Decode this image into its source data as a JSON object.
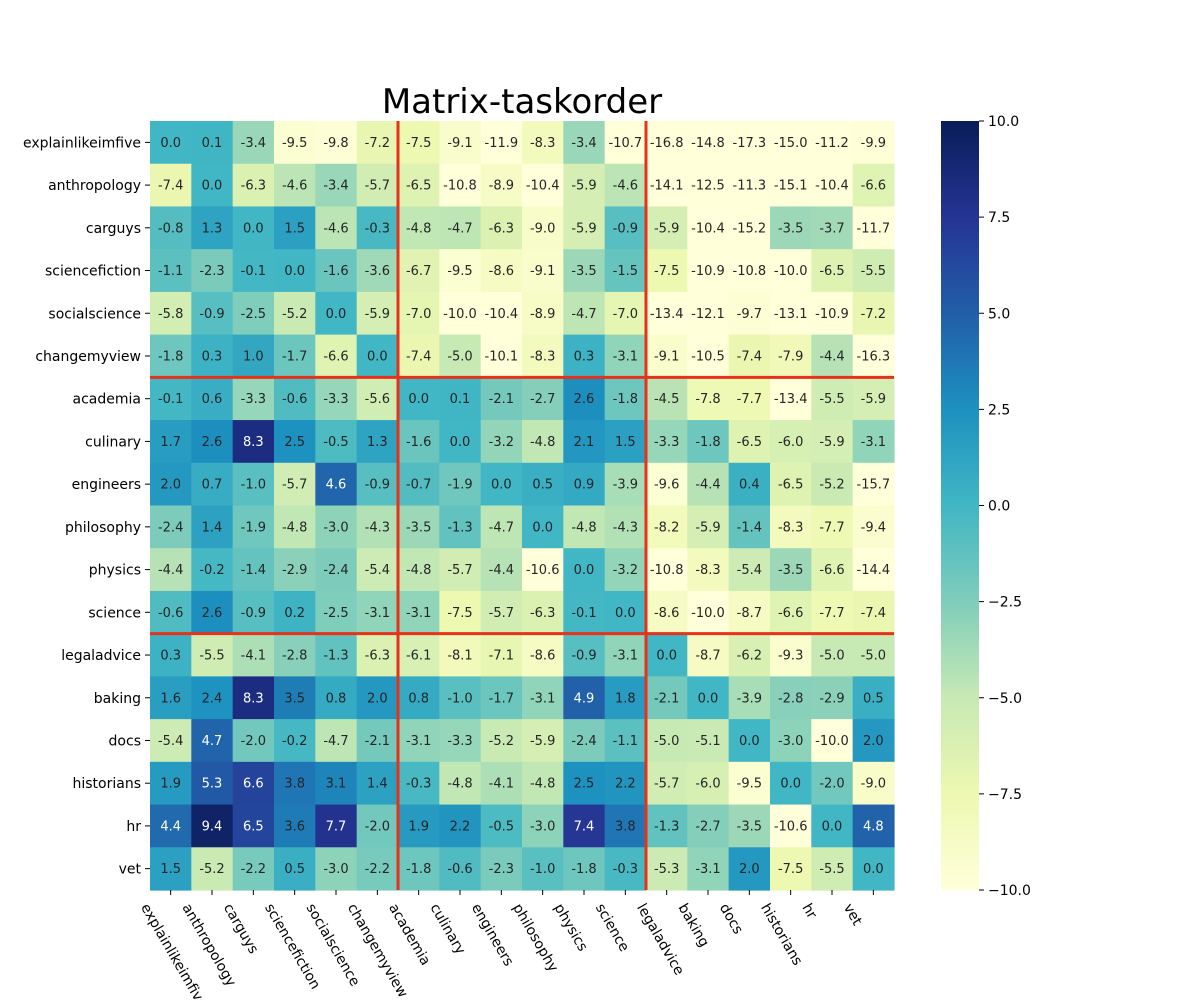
{
  "chart_data": {
    "type": "heatmap",
    "title": "Matrix-taskorder",
    "rows": [
      "explainlikeimfive",
      "anthropology",
      "carguys",
      "sciencefiction",
      "socialscience",
      "changemyview",
      "academia",
      "culinary",
      "engineers",
      "philosophy",
      "physics",
      "science",
      "legaladvice",
      "baking",
      "docs",
      "historians",
      "hr",
      "vet"
    ],
    "cols": [
      "explainlikeimfive",
      "anthropology",
      "carguys",
      "sciencefiction",
      "socialscience",
      "changemyview",
      "academia",
      "culinary",
      "engineers",
      "philosophy",
      "physics",
      "science",
      "legaladvice",
      "baking",
      "docs",
      "historians",
      "hr",
      "vet"
    ],
    "values": [
      [
        0.0,
        0.1,
        -3.4,
        -9.5,
        -9.8,
        -7.2,
        -7.5,
        -9.1,
        -11.9,
        -8.3,
        -3.4,
        -10.7,
        -16.8,
        -14.8,
        -17.3,
        -15.0,
        -11.2,
        -9.9
      ],
      [
        -7.4,
        0.0,
        -6.3,
        -4.6,
        -3.4,
        -5.7,
        -6.5,
        -10.8,
        -8.9,
        -10.4,
        -5.9,
        -4.6,
        -14.1,
        -12.5,
        -11.3,
        -15.1,
        -10.4,
        -6.6
      ],
      [
        -0.8,
        1.3,
        0.0,
        1.5,
        -4.6,
        -0.3,
        -4.8,
        -4.7,
        -6.3,
        -9.0,
        -5.9,
        -0.9,
        -5.9,
        -10.4,
        -15.2,
        -3.5,
        -3.7,
        -11.7
      ],
      [
        -1.1,
        -2.3,
        -0.1,
        0.0,
        -1.6,
        -3.6,
        -6.7,
        -9.5,
        -8.6,
        -9.1,
        -3.5,
        -1.5,
        -7.5,
        -10.9,
        -10.8,
        -10.0,
        -6.5,
        -5.5
      ],
      [
        -5.8,
        -0.9,
        -2.5,
        -5.2,
        0.0,
        -5.9,
        -7.0,
        -10.0,
        -10.4,
        -8.9,
        -4.7,
        -7.0,
        -13.4,
        -12.1,
        -9.7,
        -13.1,
        -10.9,
        -7.2
      ],
      [
        -1.8,
        0.3,
        1.0,
        -1.7,
        -6.6,
        0.0,
        -7.4,
        -5.0,
        -10.1,
        -8.3,
        0.3,
        -3.1,
        -9.1,
        -10.5,
        -7.4,
        -7.9,
        -4.4,
        -16.3
      ],
      [
        -0.1,
        0.6,
        -3.3,
        -0.6,
        -3.3,
        -5.6,
        0.0,
        0.1,
        -2.1,
        -2.7,
        2.6,
        -1.8,
        -4.5,
        -7.8,
        -7.7,
        -13.4,
        -5.5,
        -5.9
      ],
      [
        1.7,
        2.6,
        8.3,
        2.5,
        -0.5,
        1.3,
        -1.6,
        0.0,
        -3.2,
        -4.8,
        2.1,
        1.5,
        -3.3,
        -1.8,
        -6.5,
        -6.0,
        -5.9,
        -3.1
      ],
      [
        2.0,
        0.7,
        -1.0,
        -5.7,
        4.6,
        -0.9,
        -0.7,
        -1.9,
        0.0,
        0.5,
        0.9,
        -3.9,
        -9.6,
        -4.4,
        0.4,
        -6.5,
        -5.2,
        -15.7
      ],
      [
        -2.4,
        1.4,
        -1.9,
        -4.8,
        -3.0,
        -4.3,
        -3.5,
        -1.3,
        -4.7,
        0.0,
        -4.8,
        -4.3,
        -8.2,
        -5.9,
        -1.4,
        -8.3,
        -7.7,
        -9.4
      ],
      [
        -4.4,
        -0.2,
        -1.4,
        -2.9,
        -2.4,
        -5.4,
        -4.8,
        -5.7,
        -4.4,
        -10.6,
        0.0,
        -3.2,
        -10.8,
        -8.3,
        -5.4,
        -3.5,
        -6.6,
        -14.4
      ],
      [
        -0.6,
        2.6,
        -0.9,
        0.2,
        -2.5,
        -3.1,
        -3.1,
        -7.5,
        -5.7,
        -6.3,
        -0.1,
        0.0,
        -8.6,
        -10.0,
        -8.7,
        -6.6,
        -7.7,
        -7.4
      ],
      [
        0.3,
        -5.5,
        -4.1,
        -2.8,
        -1.3,
        -6.3,
        -6.1,
        -8.1,
        -7.1,
        -8.6,
        -0.9,
        -3.1,
        0.0,
        -8.7,
        -6.2,
        -9.3,
        -5.0,
        -5.0
      ],
      [
        1.6,
        2.4,
        8.3,
        3.5,
        0.8,
        2.0,
        0.8,
        -1.0,
        -1.7,
        -3.1,
        4.9,
        1.8,
        -2.1,
        0.0,
        -3.9,
        -2.8,
        -2.9,
        0.5
      ],
      [
        -5.4,
        4.7,
        -2.0,
        -0.2,
        -4.7,
        -2.1,
        -3.1,
        -3.3,
        -5.2,
        -5.9,
        -2.4,
        -1.1,
        -5.0,
        -5.1,
        0.0,
        -3.0,
        -10.0,
        2.0
      ],
      [
        1.9,
        5.3,
        6.6,
        3.8,
        3.1,
        1.4,
        -0.3,
        -4.8,
        -4.1,
        -4.8,
        2.5,
        2.2,
        -5.7,
        -6.0,
        -9.5,
        0.0,
        -2.0,
        -9.0
      ],
      [
        4.4,
        9.4,
        6.5,
        3.6,
        7.7,
        -2.0,
        1.9,
        2.2,
        -0.5,
        -3.0,
        7.4,
        3.8,
        -1.3,
        -2.7,
        -3.5,
        -10.6,
        0.0,
        4.8
      ],
      [
        1.5,
        -5.2,
        -2.2,
        0.5,
        -3.0,
        -2.2,
        -1.8,
        -0.6,
        -2.3,
        -1.0,
        -1.8,
        -0.3,
        -5.3,
        -3.1,
        2.0,
        -7.5,
        -5.5,
        0.0
      ]
    ],
    "vmin": -10,
    "vmax": 10,
    "colormap": "YlGnBu",
    "colorbar_ticks": [
      -10.0,
      -7.5,
      -5.0,
      -2.5,
      0.0,
      2.5,
      5.0,
      7.5,
      10.0
    ],
    "group_boundaries": [
      6,
      12
    ],
    "group_boundary_color": "#e8311a",
    "x_tick_rotation": -60,
    "grid": false
  }
}
